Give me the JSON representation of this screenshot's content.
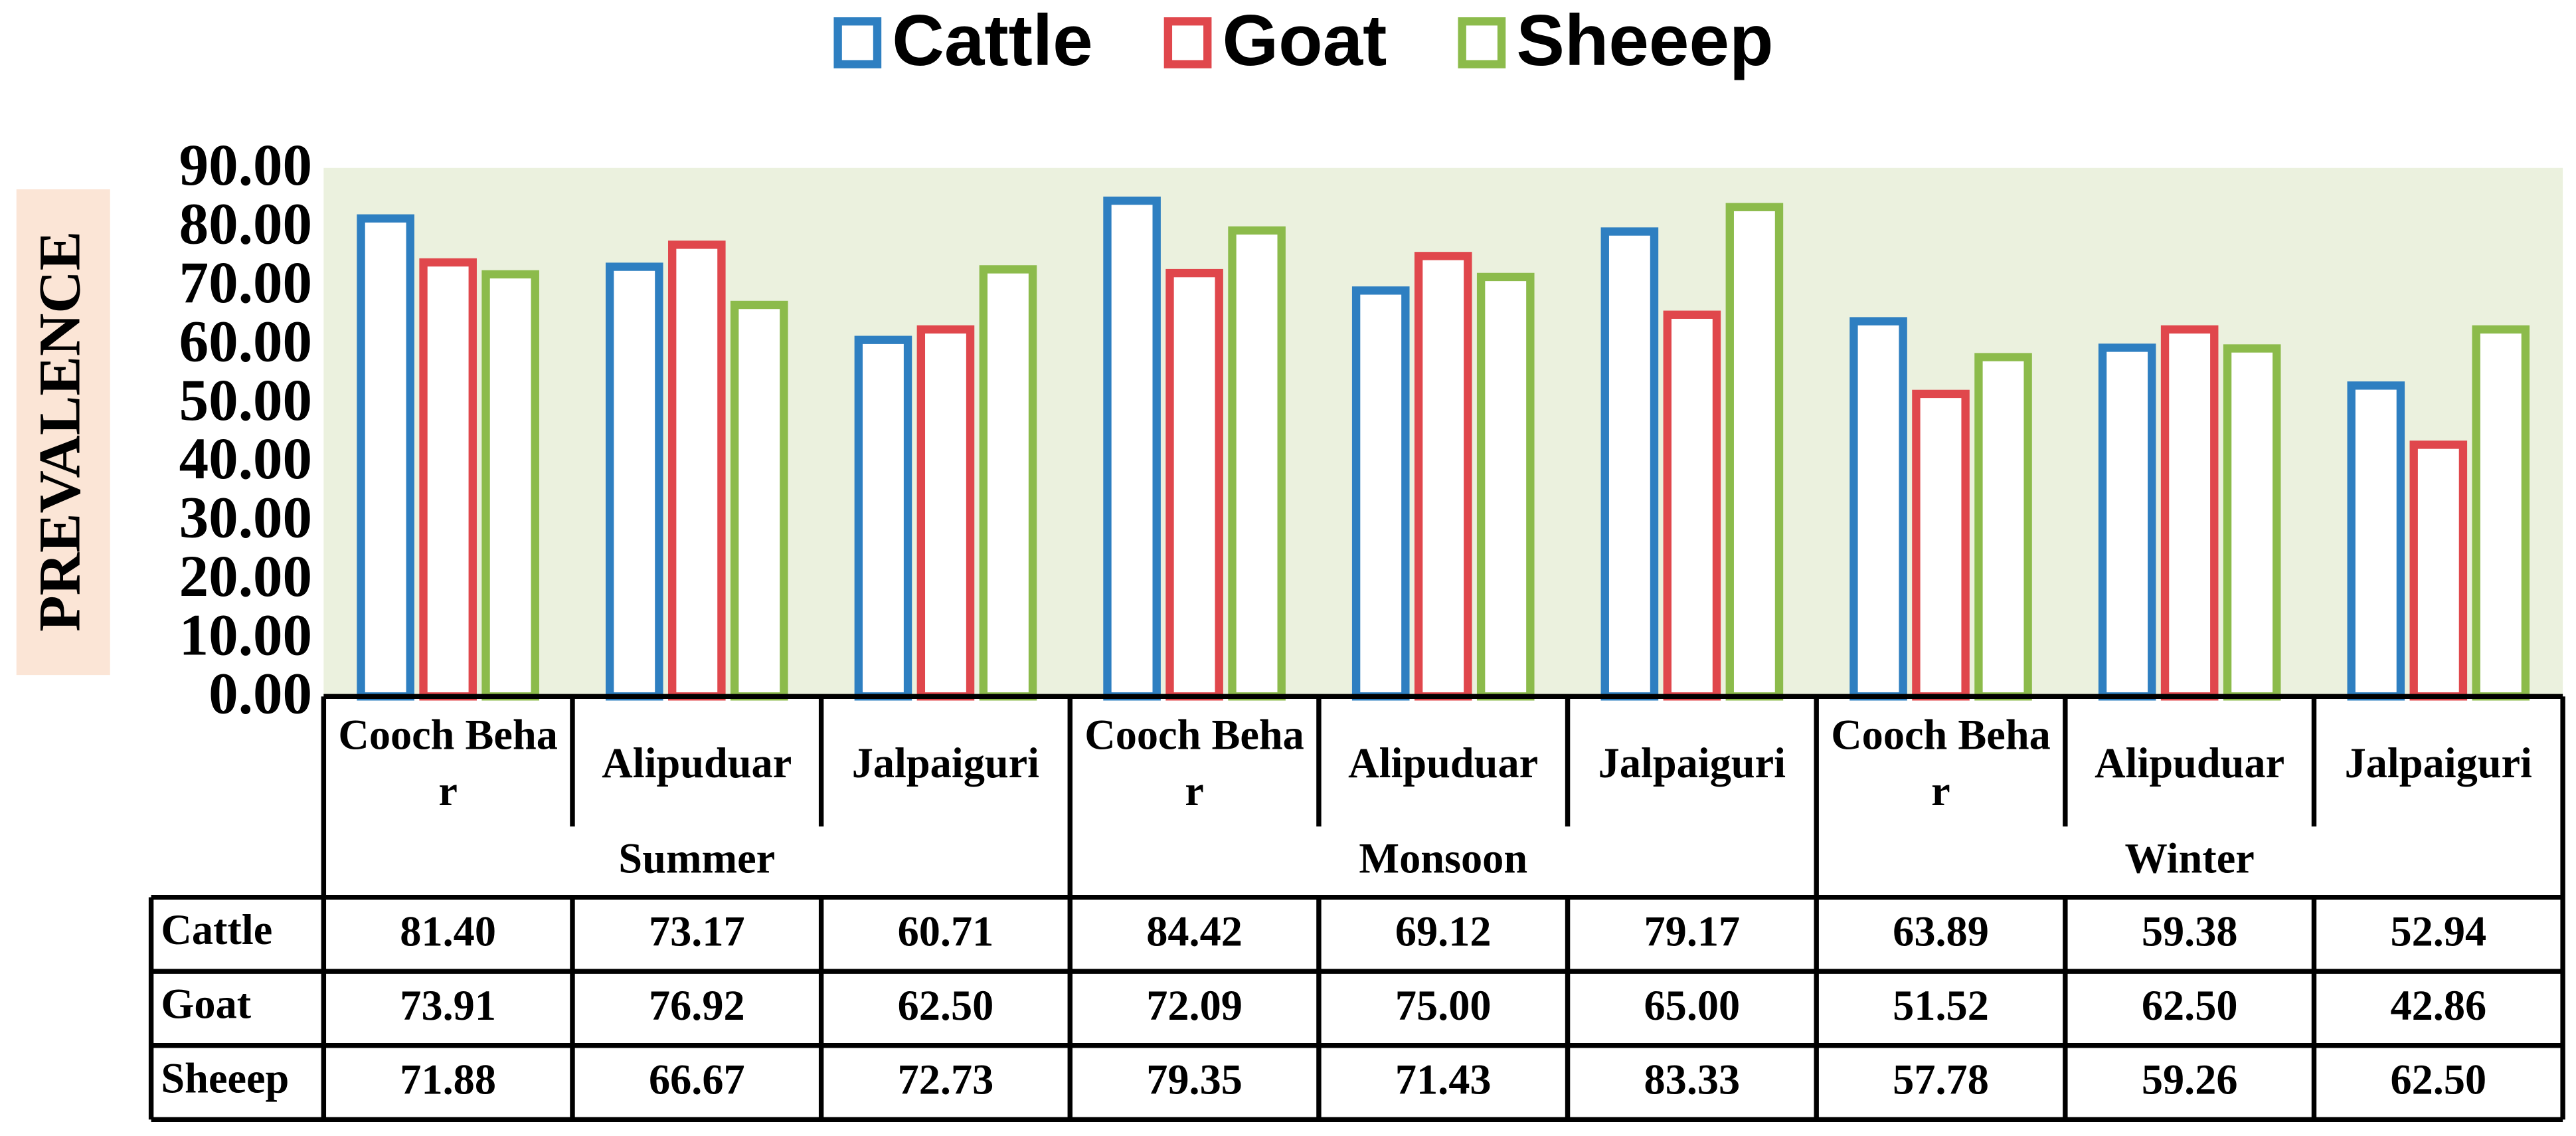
{
  "chart_data": {
    "type": "bar",
    "y_label": "PREVALENCE",
    "categories": [
      "Cooch Behar",
      "Alipuduar",
      "Jalpaiguri",
      "Cooch Behar",
      "Alipuduar",
      "Jalpaiguri",
      "Cooch Behar",
      "Alipuduar",
      "Jalpaiguri"
    ],
    "groups": [
      "Summer",
      "Monsoon",
      "Winter"
    ],
    "series": [
      {
        "name": "Cattle",
        "color": "#2e7fc1",
        "values": [
          81.4,
          73.17,
          60.71,
          84.42,
          69.12,
          79.17,
          63.89,
          59.38,
          52.94
        ],
        "value_labels": [
          "81.40",
          "73.17",
          "60.71",
          "84.42",
          "69.12",
          "79.17",
          "63.89",
          "59.38",
          "52.94"
        ]
      },
      {
        "name": "Goat",
        "color": "#e0474c",
        "values": [
          73.91,
          76.92,
          62.5,
          72.09,
          75,
          65,
          51.52,
          62.5,
          42.86
        ],
        "value_labels": [
          "73.91",
          "76.92",
          "62.50",
          "72.09",
          "75.00",
          "65.00",
          "51.52",
          "62.50",
          "42.86"
        ]
      },
      {
        "name": "Sheeep",
        "color": "#8cbb4b",
        "values": [
          71.88,
          66.67,
          72.73,
          79.35,
          71.43,
          83.33,
          57.78,
          59.26,
          62.5
        ],
        "value_labels": [
          "71.88",
          "66.67",
          "72.73",
          "79.35",
          "71.43",
          "83.33",
          "57.78",
          "59.26",
          "62.50"
        ]
      }
    ],
    "ylim": [
      0,
      90
    ],
    "yticks": [
      {
        "value": 0,
        "label": "0.00"
      },
      {
        "value": 10,
        "label": "10.00"
      },
      {
        "value": 20,
        "label": "20.00"
      },
      {
        "value": 30,
        "label": "30.00"
      },
      {
        "value": 40,
        "label": "40.00"
      },
      {
        "value": 50,
        "label": "50.00"
      },
      {
        "value": 60,
        "label": "60.00"
      },
      {
        "value": 70,
        "label": "70.00"
      },
      {
        "value": 80,
        "label": "80.00"
      },
      {
        "value": 90,
        "label": "90.00"
      }
    ],
    "legend": "top"
  }
}
